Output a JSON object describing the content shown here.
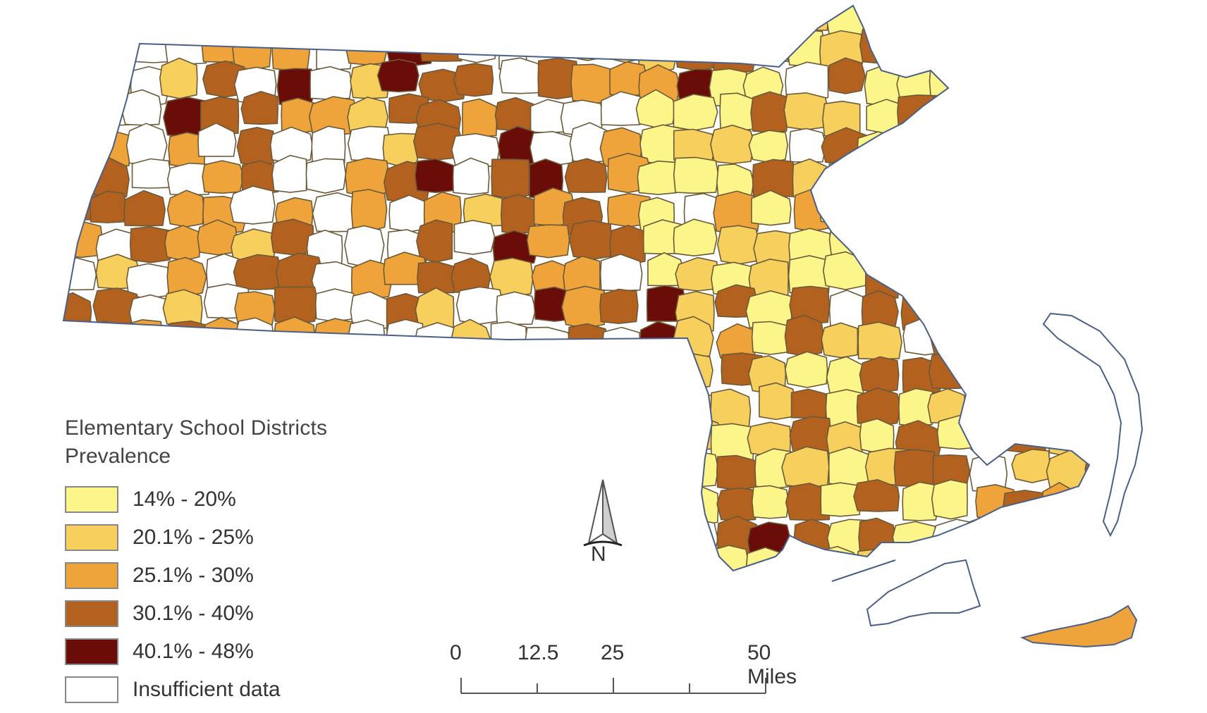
{
  "legend": {
    "title": "Elementary School Districts",
    "subtitle": "Prevalence",
    "items": [
      {
        "label": "14% - 20%",
        "color": "#fbf58a"
      },
      {
        "label": "20.1% - 25%",
        "color": "#f7cf5c"
      },
      {
        "label": "25.1% - 30%",
        "color": "#eea43a"
      },
      {
        "label": "30.1% - 40%",
        "color": "#b3611f"
      },
      {
        "label": "40.1% - 48%",
        "color": "#6a0d08"
      },
      {
        "label": "Insufficient data",
        "color": "#ffffff"
      }
    ]
  },
  "north_arrow": {
    "label": "N"
  },
  "scale_bar": {
    "labels": [
      "0",
      "12.5",
      "25",
      "50 Miles"
    ]
  },
  "colors": {
    "boundary": "#4a5f8a",
    "district_border": "#6b5a3a"
  }
}
